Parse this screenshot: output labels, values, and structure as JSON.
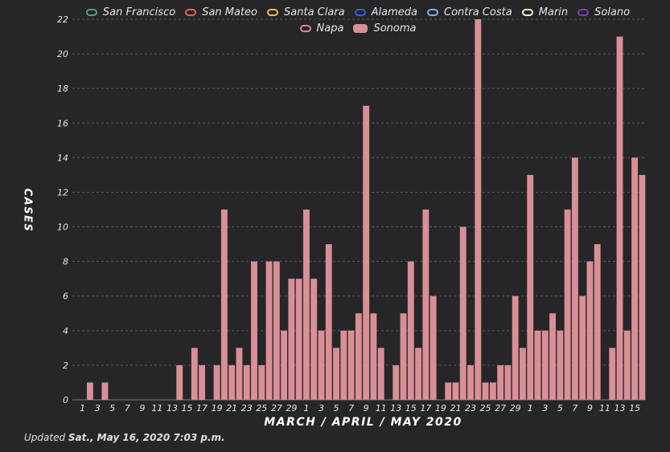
{
  "footer": {
    "prefix": "Updated",
    "date": "Sat., May 16, 2020 7:03 p.m."
  },
  "chart_data": {
    "type": "bar",
    "xlabel": "MARCH / APRIL / MAY 2020",
    "ylabel": "CASES",
    "ylim": [
      0,
      22
    ],
    "yticks": [
      0,
      2,
      4,
      6,
      8,
      10,
      12,
      14,
      16,
      18,
      20,
      22
    ],
    "grid": true,
    "legend": [
      {
        "name": "San Francisco",
        "color": "#4fa37a",
        "filled": false
      },
      {
        "name": "San Mateo",
        "color": "#e0693e",
        "filled": false
      },
      {
        "name": "Santa Clara",
        "color": "#f0b955",
        "filled": false
      },
      {
        "name": "Alameda",
        "color": "#2e5ff0",
        "filled": false
      },
      {
        "name": "Contra Costa",
        "color": "#6fb6e0",
        "filled": false
      },
      {
        "name": "Marin",
        "color": "#f2efd8",
        "filled": false
      },
      {
        "name": "Solano",
        "color": "#7a3fb3",
        "filled": false
      },
      {
        "name": "Napa",
        "color": "#e47aa0",
        "filled": false
      },
      {
        "name": "Sonoma",
        "color": "#d98f96",
        "filled": true
      }
    ],
    "tick_labels": [
      "1",
      "3",
      "5",
      "7",
      "9",
      "11",
      "13",
      "15",
      "17",
      "19",
      "21",
      "23",
      "25",
      "27",
      "29",
      "1",
      "3",
      "5",
      "7",
      "9",
      "11",
      "13",
      "15",
      "17",
      "19",
      "21",
      "23",
      "25",
      "27",
      "29",
      "1",
      "3",
      "5",
      "7",
      "9",
      "11",
      "13",
      "15"
    ],
    "series": [
      {
        "name": "Sonoma",
        "color": "#d98f96",
        "values": [
          0,
          1,
          0,
          1,
          0,
          0,
          0,
          0,
          0,
          0,
          0,
          0,
          0,
          2,
          0,
          3,
          2,
          0,
          2,
          11,
          2,
          3,
          2,
          8,
          2,
          8,
          8,
          4,
          7,
          7,
          11,
          7,
          4,
          9,
          3,
          4,
          4,
          5,
          17,
          5,
          3,
          0,
          2,
          5,
          8,
          3,
          11,
          6,
          0,
          1,
          1,
          10,
          2,
          22,
          1,
          1,
          2,
          2,
          6,
          3,
          13,
          4,
          4,
          5,
          4,
          11,
          14,
          6,
          8,
          9,
          0,
          3,
          21,
          4,
          14,
          13
        ]
      }
    ]
  }
}
